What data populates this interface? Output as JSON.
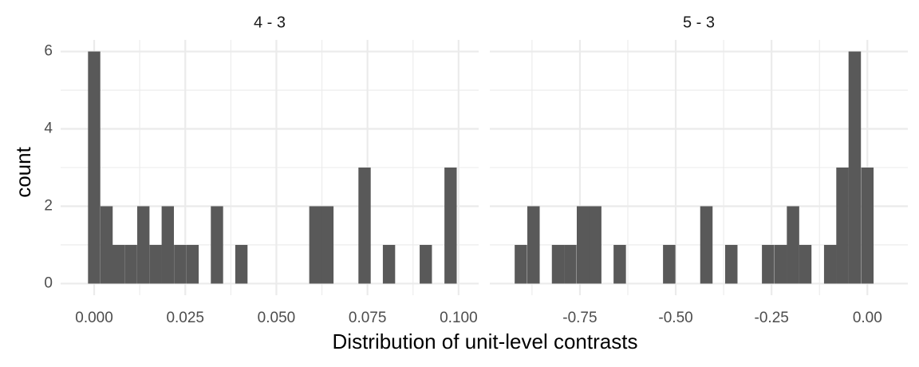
{
  "chart_data": {
    "type": "bar",
    "xlabel": "Distribution of unit-level contrasts",
    "ylabel": "count",
    "grid": true,
    "legend": "none",
    "bar_color": "#595959",
    "grid_color": "#ebebeb",
    "panels": [
      {
        "title": "4 - 3",
        "xlim": [
          -0.0092,
          0.1055
        ],
        "ylim": [
          -0.3,
          6.3
        ],
        "x_ticks": [
          0.0,
          0.025,
          0.05,
          0.075,
          0.1
        ],
        "x_tick_labels": [
          "0.000",
          "0.025",
          "0.050",
          "0.075",
          "0.100"
        ],
        "y_ticks": [
          0,
          2,
          4,
          6
        ],
        "y_tick_labels": [
          "0",
          "2",
          "4",
          "6"
        ],
        "bin_width": 0.00337,
        "bins": [
          {
            "x": 0.0,
            "count": 6
          },
          {
            "x": 0.0034,
            "count": 2
          },
          {
            "x": 0.0067,
            "count": 1
          },
          {
            "x": 0.0101,
            "count": 1
          },
          {
            "x": 0.0135,
            "count": 2
          },
          {
            "x": 0.0169,
            "count": 1
          },
          {
            "x": 0.0202,
            "count": 2
          },
          {
            "x": 0.0236,
            "count": 1
          },
          {
            "x": 0.027,
            "count": 1
          },
          {
            "x": 0.0303,
            "count": 0
          },
          {
            "x": 0.0337,
            "count": 2
          },
          {
            "x": 0.0371,
            "count": 0
          },
          {
            "x": 0.0404,
            "count": 1
          },
          {
            "x": 0.0438,
            "count": 0
          },
          {
            "x": 0.0472,
            "count": 0
          },
          {
            "x": 0.0506,
            "count": 0
          },
          {
            "x": 0.0539,
            "count": 0
          },
          {
            "x": 0.0573,
            "count": 0
          },
          {
            "x": 0.0607,
            "count": 2
          },
          {
            "x": 0.064,
            "count": 2
          },
          {
            "x": 0.0674,
            "count": 0
          },
          {
            "x": 0.0708,
            "count": 0
          },
          {
            "x": 0.0742,
            "count": 3
          },
          {
            "x": 0.0775,
            "count": 0
          },
          {
            "x": 0.0809,
            "count": 1
          },
          {
            "x": 0.0843,
            "count": 0
          },
          {
            "x": 0.0876,
            "count": 0
          },
          {
            "x": 0.091,
            "count": 1
          },
          {
            "x": 0.0944,
            "count": 0
          },
          {
            "x": 0.0978,
            "count": 3
          }
        ]
      },
      {
        "title": "5 - 3",
        "xlim": [
          -0.985,
          0.1055
        ],
        "ylim": [
          -0.3,
          6.3
        ],
        "x_ticks": [
          -0.75,
          -0.5,
          -0.25,
          0.0
        ],
        "x_tick_labels": [
          "-0.75",
          "-0.50",
          "-0.25",
          "0.00"
        ],
        "y_ticks": [
          0,
          2,
          4,
          6
        ],
        "y_tick_labels": [
          "0",
          "2",
          "4",
          "6"
        ],
        "bin_width": 0.0323,
        "bins": [
          {
            "x": -0.904,
            "count": 1
          },
          {
            "x": -0.871,
            "count": 2
          },
          {
            "x": -0.839,
            "count": 0
          },
          {
            "x": -0.807,
            "count": 1
          },
          {
            "x": -0.775,
            "count": 1
          },
          {
            "x": -0.742,
            "count": 2
          },
          {
            "x": -0.71,
            "count": 2
          },
          {
            "x": -0.678,
            "count": 0
          },
          {
            "x": -0.646,
            "count": 1
          },
          {
            "x": -0.613,
            "count": 0
          },
          {
            "x": -0.581,
            "count": 0
          },
          {
            "x": -0.549,
            "count": 0
          },
          {
            "x": -0.517,
            "count": 1
          },
          {
            "x": -0.484,
            "count": 0
          },
          {
            "x": -0.452,
            "count": 0
          },
          {
            "x": -0.42,
            "count": 2
          },
          {
            "x": -0.388,
            "count": 0
          },
          {
            "x": -0.355,
            "count": 1
          },
          {
            "x": -0.323,
            "count": 0
          },
          {
            "x": -0.291,
            "count": 0
          },
          {
            "x": -0.259,
            "count": 1
          },
          {
            "x": -0.226,
            "count": 1
          },
          {
            "x": -0.194,
            "count": 2
          },
          {
            "x": -0.162,
            "count": 1
          },
          {
            "x": -0.13,
            "count": 0
          },
          {
            "x": -0.097,
            "count": 1
          },
          {
            "x": -0.065,
            "count": 3
          },
          {
            "x": -0.033,
            "count": 6
          },
          {
            "x": 0.0,
            "count": 3
          }
        ]
      }
    ]
  }
}
